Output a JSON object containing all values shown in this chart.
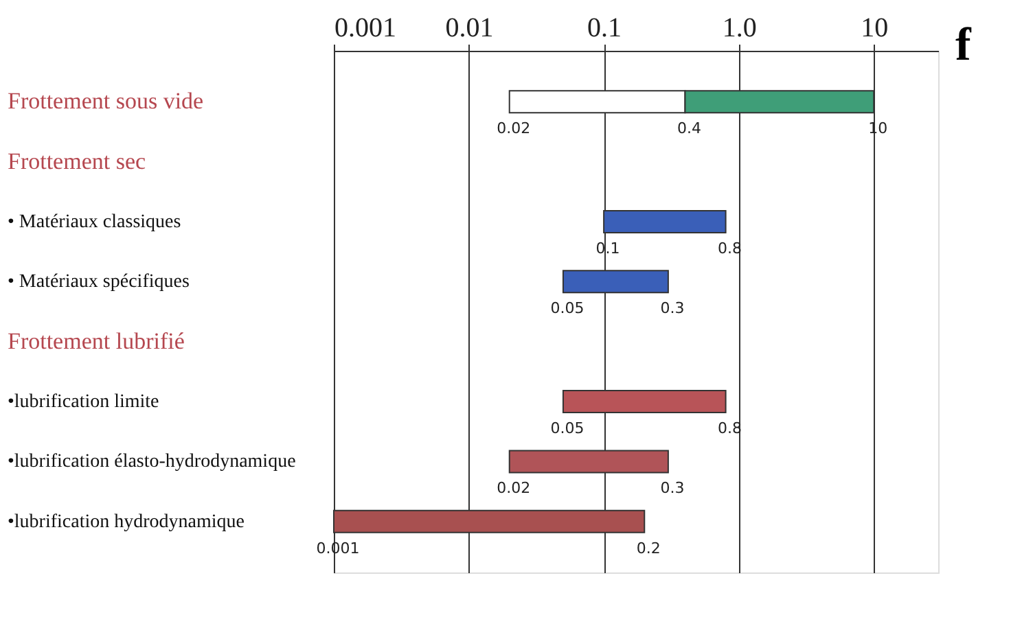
{
  "chart_data": {
    "type": "bar",
    "orientation": "horizontal",
    "log": "x",
    "xlabel": "f",
    "categories": [
      "Frottement sous vide",
      "Frottement sec",
      "• Matériaux classiques",
      "• Matériaux spécifiques",
      "Frottement lubrifié",
      "•lubrification limite",
      "•lubrification élasto-hydrodynamique",
      "•lubrification hydrodynamique"
    ],
    "series": [
      {
        "base": [
          0.02,
          null,
          0.1,
          0.05,
          null,
          0.05,
          0.02,
          0.001
        ],
        "colors": [
          "#ffffff",
          null,
          "#3a5fb8",
          "#3a5fb8",
          null,
          "#b85458",
          "#b05458",
          "#a85050"
        ],
        "values": [
          0.38,
          null,
          0.7,
          0.25,
          null,
          0.75,
          0.28,
          0.199
        ]
      },
      {
        "color": "#3f9e78",
        "base": [
          0.4,
          null,
          null,
          null,
          null,
          null,
          null,
          null
        ],
        "values": [
          9.6,
          null,
          null,
          null,
          null,
          null,
          null,
          null
        ]
      }
    ],
    "xlim": [
      0.001,
      30
    ],
    "xticks": [
      0.001,
      0.01,
      0.1,
      {
        "value": 1,
        "label": "1.0"
      },
      10
    ],
    "grid": "x",
    "annotations": [
      {
        "text": "0.02",
        "x": 0.02,
        "y": "Frottement sous vide"
      },
      {
        "text": "0.4",
        "x": 0.4,
        "y": "Frottement sous vide"
      },
      {
        "text": "10",
        "x": 10,
        "y": "Frottement sous vide"
      },
      {
        "text": "0.1",
        "x": 0.1,
        "y": "• Matériaux classiques"
      },
      {
        "text": "0.8",
        "x": 0.8,
        "y": "• Matériaux classiques"
      },
      {
        "text": "0.05",
        "x": 0.05,
        "y": "• Matériaux spécifiques"
      },
      {
        "text": "0.3",
        "x": 0.3,
        "y": "• Matériaux spécifiques"
      },
      {
        "text": "0.05",
        "x": 0.05,
        "y": "•lubrification limite"
      },
      {
        "text": "0.8",
        "x": 0.8,
        "y": "•lubrification limite"
      },
      {
        "text": "0.02",
        "x": 0.02,
        "y": "•lubrification élasto-hydrodynamique"
      },
      {
        "text": "0.3",
        "x": 0.3,
        "y": "•lubrification élasto-hydrodynamique"
      },
      {
        "text": "0.001",
        "x": 0.001,
        "y": "•lubrification hydrodynamique"
      },
      {
        "text": "0.2",
        "x": 0.2,
        "y": "•lubrification hydrodynamique"
      }
    ]
  }
}
